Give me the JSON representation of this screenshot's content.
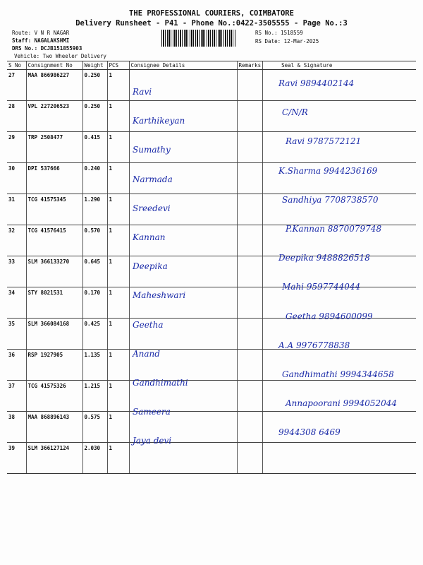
{
  "header": {
    "title": "THE PROFESSIONAL COURIERS, COIMBATORE",
    "subtitle": "Delivery Runsheet - P41 - Phone No.:0422-3505555 - Page No.:3",
    "route": "Route: V N R NAGAR",
    "staff": "Staff: NAGALAKSHMI",
    "drs": "DRS No.: DCJB151855903",
    "vehicle": "Vehicle: Two Wheeler Delivery",
    "rs_no": "RS No.: 1518559",
    "rs_date": "RS Date: 12-Mar-2025"
  },
  "columns": [
    "S No",
    "Consignment No",
    "Weight",
    "PCS",
    "Consignee Details",
    "Remarks",
    "Seal & Signature"
  ],
  "rows": [
    {
      "sno": "27",
      "cons": "MAA 866986227",
      "weight": "0.250",
      "pcs": "1",
      "name": "Ravi",
      "sig": "Ravi 9894402144"
    },
    {
      "sno": "28",
      "cons": "VPL 227206523",
      "weight": "0.250",
      "pcs": "1",
      "name": "Karthikeyan",
      "sig": "C/N/R"
    },
    {
      "sno": "29",
      "cons": "TRP 2508477",
      "weight": "0.415",
      "pcs": "1",
      "name": "Sumathy",
      "sig": "Ravi 9787572121"
    },
    {
      "sno": "30",
      "cons": "DPI 537666",
      "weight": "0.240",
      "pcs": "1",
      "name": "Narmada",
      "sig": "K.Sharma 9944236169"
    },
    {
      "sno": "31",
      "cons": "TCG 41575345",
      "weight": "1.290",
      "pcs": "1",
      "name": "Sreedevi",
      "sig": "Sandhiya 7708738570"
    },
    {
      "sno": "32",
      "cons": "TCG 41576415",
      "weight": "0.570",
      "pcs": "1",
      "name": "Kannan",
      "sig": "P.Kannan 8870079748"
    },
    {
      "sno": "33",
      "cons": "SLM 366133270",
      "weight": "0.645",
      "pcs": "1",
      "name": "Deepika",
      "sig": "Deepika 9488826518"
    },
    {
      "sno": "34",
      "cons": "STY 8021531",
      "weight": "0.170",
      "pcs": "1",
      "name": "Maheshwari",
      "sig": "Mahi 9597744044"
    },
    {
      "sno": "35",
      "cons": "SLM 366084168",
      "weight": "0.425",
      "pcs": "1",
      "name": "Geetha",
      "sig": "Geetha 9894600099"
    },
    {
      "sno": "36",
      "cons": "RSP 1927905",
      "weight": "1.135",
      "pcs": "1",
      "name": "Anand",
      "sig": "A.A 9976778838"
    },
    {
      "sno": "37",
      "cons": "TCG 41575326",
      "weight": "1.215",
      "pcs": "1",
      "name": "Gandhimathi",
      "sig": "Gandhimathi 9994344658"
    },
    {
      "sno": "38",
      "cons": "MAA 868896143",
      "weight": "0.575",
      "pcs": "1",
      "name": "Sameera",
      "sig": "Annapoorani 9994052044"
    },
    {
      "sno": "39",
      "cons": "SLM 366127124",
      "weight": "2.030",
      "pcs": "1",
      "name": "Jaya devi",
      "sig": "9944308 6469"
    }
  ]
}
